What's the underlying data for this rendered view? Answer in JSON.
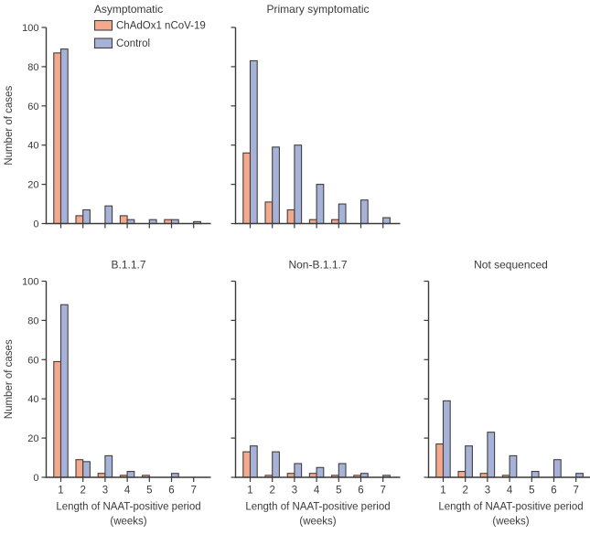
{
  "figure": {
    "ylabel": "Number of cases",
    "xlabel_line1": "Length of NAAT-positive period",
    "xlabel_line2": "(weeks)",
    "week_tick_labels": [
      "1",
      "2",
      "3",
      "4",
      "5",
      "6",
      "7"
    ],
    "y_ticks": [
      0,
      20,
      40,
      60,
      80,
      100
    ],
    "legend": {
      "position": "top-left-inside-first-panel",
      "entries": [
        {
          "label": "ChAdOx1 nCoV-19",
          "color": "#F5A98C"
        },
        {
          "label": "Control",
          "color": "#A7B2D8"
        }
      ]
    },
    "colors": {
      "chadox_fill": "#F5A98C",
      "control_fill": "#A7B2D8",
      "bar_border": "#413F3D",
      "axis": "#3A3A38",
      "text": "#3A3A3A"
    }
  },
  "chart_data": [
    {
      "type": "bar",
      "title": "Asymptomatic",
      "categories": [
        1,
        2,
        3,
        4,
        5,
        6,
        7
      ],
      "series": [
        {
          "name": "ChAdOx1 nCoV-19",
          "values": [
            87,
            4,
            0,
            4,
            0,
            2,
            0
          ]
        },
        {
          "name": "Control",
          "values": [
            89,
            7,
            9,
            2,
            2,
            2,
            1
          ]
        }
      ],
      "ylabel": "Number of cases",
      "xlabel": "",
      "ylim": [
        0,
        100
      ],
      "grid": false,
      "layout": {
        "row": 0,
        "col": 0,
        "show_y_tick_labels": true,
        "show_x_tick_labels": false,
        "show_ylabel": true,
        "show_xlabel": false,
        "show_legend": true
      }
    },
    {
      "type": "bar",
      "title": "Primary symptomatic",
      "categories": [
        1,
        2,
        3,
        4,
        5,
        6,
        7
      ],
      "series": [
        {
          "name": "ChAdOx1 nCoV-19",
          "values": [
            36,
            11,
            7,
            2,
            2,
            0,
            0
          ]
        },
        {
          "name": "Control",
          "values": [
            83,
            39,
            40,
            20,
            10,
            12,
            3
          ]
        }
      ],
      "ylabel": "",
      "xlabel": "",
      "ylim": [
        0,
        100
      ],
      "grid": false,
      "layout": {
        "row": 0,
        "col": 1,
        "show_y_tick_labels": false,
        "show_x_tick_labels": false,
        "show_ylabel": false,
        "show_xlabel": false,
        "show_legend": false
      }
    },
    {
      "type": "bar",
      "title": "B.1.1.7",
      "categories": [
        1,
        2,
        3,
        4,
        5,
        6,
        7
      ],
      "series": [
        {
          "name": "ChAdOx1 nCoV-19",
          "values": [
            59,
            9,
            2,
            1,
            1,
            0,
            0
          ]
        },
        {
          "name": "Control",
          "values": [
            88,
            8,
            11,
            3,
            0,
            2,
            0
          ]
        }
      ],
      "ylabel": "Number of cases",
      "xlabel": "Length of NAAT-positive period (weeks)",
      "ylim": [
        0,
        100
      ],
      "grid": false,
      "layout": {
        "row": 1,
        "col": 0,
        "show_y_tick_labels": true,
        "show_x_tick_labels": true,
        "show_ylabel": true,
        "show_xlabel": true,
        "show_legend": false
      }
    },
    {
      "type": "bar",
      "title": "Non-B.1.1.7",
      "categories": [
        1,
        2,
        3,
        4,
        5,
        6,
        7
      ],
      "series": [
        {
          "name": "ChAdOx1 nCoV-19",
          "values": [
            13,
            1,
            2,
            2,
            1,
            1,
            0
          ]
        },
        {
          "name": "Control",
          "values": [
            16,
            13,
            7,
            5,
            7,
            2,
            1
          ]
        }
      ],
      "ylabel": "",
      "xlabel": "Length of NAAT-positive period (weeks)",
      "ylim": [
        0,
        100
      ],
      "grid": false,
      "layout": {
        "row": 1,
        "col": 1,
        "show_y_tick_labels": false,
        "show_x_tick_labels": true,
        "show_ylabel": false,
        "show_xlabel": true,
        "show_legend": false
      }
    },
    {
      "type": "bar",
      "title": "Not sequenced",
      "categories": [
        1,
        2,
        3,
        4,
        5,
        6,
        7
      ],
      "series": [
        {
          "name": "ChAdOx1 nCoV-19",
          "values": [
            17,
            3,
            2,
            1,
            0,
            0,
            0
          ]
        },
        {
          "name": "Control",
          "values": [
            39,
            16,
            23,
            11,
            3,
            9,
            2
          ]
        }
      ],
      "ylabel": "",
      "xlabel": "Length of NAAT-positive period (weeks)",
      "ylim": [
        0,
        100
      ],
      "grid": false,
      "layout": {
        "row": 1,
        "col": 2,
        "show_y_tick_labels": false,
        "show_x_tick_labels": true,
        "show_ylabel": false,
        "show_xlabel": true,
        "show_legend": false
      }
    }
  ]
}
